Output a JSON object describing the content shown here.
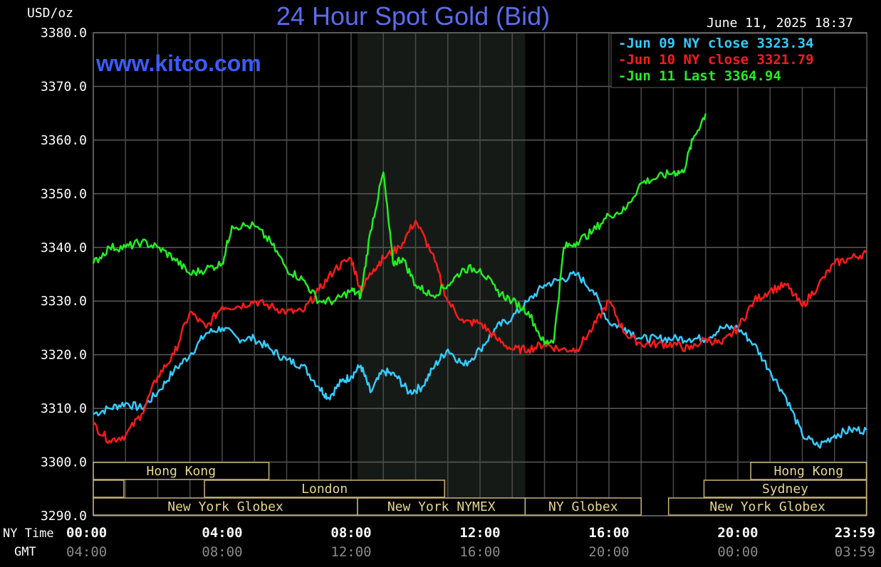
{
  "chart_data": {
    "type": "line",
    "title": "24 Hour Spot Gold (Bid)",
    "ylabel": "USD/oz",
    "watermark": "www.kitco.com",
    "timestamp": "June 11, 2025 18:37",
    "ylim": [
      3290,
      3380
    ],
    "y_ticks": [
      "3380.0",
      "3370.0",
      "3360.0",
      "3350.0",
      "3340.0",
      "3330.0",
      "3320.0",
      "3310.0",
      "3300.0",
      "3290.0"
    ],
    "x_range_hours": [
      0,
      24
    ],
    "x_ticks_ny": [
      "00:00",
      "04:00",
      "08:00",
      "12:00",
      "16:00",
      "20:00",
      "23:59"
    ],
    "x_ticks_gmt": [
      "04:00",
      "08:00",
      "12:00",
      "16:00",
      "20:00",
      "00:00",
      "03:59"
    ],
    "x_row_label_ny": "NY Time",
    "x_row_label_gmt": "GMT",
    "shaded_hours": [
      8.2,
      13.4
    ],
    "grid": true,
    "legend_position": "top-right",
    "legend": [
      {
        "label": "Jun 09 NY close",
        "value": "3323.34",
        "color": "#33ccff"
      },
      {
        "label": "Jun 10 NY close",
        "value": "3321.79",
        "color": "#ff1a1a"
      },
      {
        "label": "Jun 11 Last",
        "value": "3364.94",
        "color": "#22ee22"
      }
    ],
    "series": [
      {
        "name": "Jun 09",
        "color": "#33ccff",
        "points": [
          [
            0,
            3309
          ],
          [
            0.5,
            3310
          ],
          [
            1,
            3311
          ],
          [
            1.5,
            3310
          ],
          [
            2,
            3313
          ],
          [
            2.5,
            3317
          ],
          [
            3,
            3320
          ],
          [
            3.5,
            3324
          ],
          [
            4,
            3325
          ],
          [
            4.5,
            3323
          ],
          [
            5,
            3323
          ],
          [
            5.5,
            3321
          ],
          [
            6,
            3319
          ],
          [
            6.5,
            3318
          ],
          [
            7,
            3314
          ],
          [
            7.3,
            3312
          ],
          [
            7.7,
            3315
          ],
          [
            8,
            3316
          ],
          [
            8.3,
            3318
          ],
          [
            8.6,
            3313
          ],
          [
            9,
            3317
          ],
          [
            9.4,
            3316
          ],
          [
            9.8,
            3313
          ],
          [
            10.2,
            3314
          ],
          [
            10.6,
            3318
          ],
          [
            11,
            3321
          ],
          [
            11.5,
            3318
          ],
          [
            12,
            3321
          ],
          [
            12.5,
            3325
          ],
          [
            13,
            3327
          ],
          [
            13.5,
            3330
          ],
          [
            14,
            3333
          ],
          [
            14.5,
            3334
          ],
          [
            15,
            3335
          ],
          [
            15.5,
            3332
          ],
          [
            16,
            3326
          ],
          [
            16.5,
            3325
          ],
          [
            17,
            3323
          ],
          [
            17.5,
            3323
          ],
          [
            18,
            3323
          ],
          [
            18.5,
            3323
          ],
          [
            19,
            3323
          ],
          [
            19.5,
            3325
          ],
          [
            20,
            3325
          ],
          [
            20.5,
            3322
          ],
          [
            21,
            3317
          ],
          [
            21.5,
            3312
          ],
          [
            22,
            3305
          ],
          [
            22.5,
            3303
          ],
          [
            23,
            3305
          ],
          [
            23.5,
            3306
          ],
          [
            23.99,
            3306
          ]
        ]
      },
      {
        "name": "Jun 10",
        "color": "#ff1a1a",
        "points": [
          [
            0,
            3307
          ],
          [
            0.5,
            3304
          ],
          [
            1,
            3305
          ],
          [
            1.5,
            3309
          ],
          [
            2,
            3316
          ],
          [
            2.5,
            3320
          ],
          [
            3,
            3328
          ],
          [
            3.5,
            3325
          ],
          [
            4,
            3329
          ],
          [
            4.5,
            3329
          ],
          [
            5,
            3330
          ],
          [
            5.5,
            3329
          ],
          [
            6,
            3328
          ],
          [
            6.5,
            3328
          ],
          [
            7,
            3332
          ],
          [
            7.5,
            3336
          ],
          [
            8,
            3338
          ],
          [
            8.3,
            3332
          ],
          [
            8.7,
            3336
          ],
          [
            9,
            3338
          ],
          [
            9.5,
            3340
          ],
          [
            10,
            3345
          ],
          [
            10.5,
            3339
          ],
          [
            11,
            3330
          ],
          [
            11.5,
            3326
          ],
          [
            12,
            3326
          ],
          [
            12.5,
            3323
          ],
          [
            13,
            3321
          ],
          [
            13.5,
            3321
          ],
          [
            14,
            3322
          ],
          [
            14.5,
            3321
          ],
          [
            15,
            3321
          ],
          [
            15.5,
            3325
          ],
          [
            16,
            3330
          ],
          [
            16.5,
            3324
          ],
          [
            17,
            3322
          ],
          [
            17.5,
            3322
          ],
          [
            18,
            3322
          ],
          [
            18.5,
            3321
          ],
          [
            19,
            3323
          ],
          [
            19.5,
            3322
          ],
          [
            20,
            3325
          ],
          [
            20.5,
            3330
          ],
          [
            21,
            3332
          ],
          [
            21.5,
            3333
          ],
          [
            22,
            3329
          ],
          [
            22.5,
            3333
          ],
          [
            23,
            3337
          ],
          [
            23.5,
            3338
          ],
          [
            23.99,
            3339
          ]
        ]
      },
      {
        "name": "Jun 11",
        "color": "#22ee22",
        "points": [
          [
            0,
            3337
          ],
          [
            0.5,
            3340
          ],
          [
            1,
            3340
          ],
          [
            1.5,
            3341
          ],
          [
            2,
            3340
          ],
          [
            2.5,
            3338
          ],
          [
            3,
            3335
          ],
          [
            3.5,
            3336
          ],
          [
            4,
            3337
          ],
          [
            4.3,
            3344
          ],
          [
            5,
            3344
          ],
          [
            5.5,
            3341
          ],
          [
            6,
            3336
          ],
          [
            6.5,
            3334
          ],
          [
            7,
            3330
          ],
          [
            7.5,
            3330
          ],
          [
            8,
            3332
          ],
          [
            8.3,
            3331
          ],
          [
            8.6,
            3343
          ],
          [
            9,
            3354
          ],
          [
            9.3,
            3337
          ],
          [
            9.6,
            3338
          ],
          [
            10,
            3333
          ],
          [
            10.5,
            3331
          ],
          [
            11,
            3333
          ],
          [
            11.5,
            3336
          ],
          [
            12,
            3336
          ],
          [
            12.5,
            3332
          ],
          [
            13,
            3330
          ],
          [
            13.5,
            3328
          ],
          [
            14,
            3322
          ],
          [
            14.3,
            3323
          ],
          [
            14.6,
            3340
          ],
          [
            15,
            3341
          ],
          [
            15.5,
            3343
          ],
          [
            16,
            3346
          ],
          [
            16.5,
            3347
          ],
          [
            17,
            3352
          ],
          [
            17.5,
            3353
          ],
          [
            18,
            3354
          ],
          [
            18.3,
            3354
          ],
          [
            18.6,
            3360
          ],
          [
            19.0,
            3364.94
          ]
        ]
      }
    ],
    "sessions": [
      {
        "label": "Hong Kong",
        "row": 0,
        "start": 0,
        "end": 5.45
      },
      {
        "label": "Hong Kong",
        "row": 0,
        "start": 20.4,
        "end": 23.99
      },
      {
        "label": "",
        "row": 1,
        "start": 0,
        "end": 0.95
      },
      {
        "label": "London",
        "row": 1,
        "start": 3.45,
        "end": 10.9
      },
      {
        "label": "Sydney",
        "row": 1,
        "start": 18.95,
        "end": 23.99
      },
      {
        "label": "New York Globex",
        "row": 2,
        "start": 0,
        "end": 8.2
      },
      {
        "label": "New York NYMEX",
        "row": 2,
        "start": 8.2,
        "end": 13.4
      },
      {
        "label": "NY Globex",
        "row": 2,
        "start": 13.4,
        "end": 17.0
      },
      {
        "label": "New York Globex",
        "row": 2,
        "start": 17.85,
        "end": 23.99
      }
    ]
  }
}
